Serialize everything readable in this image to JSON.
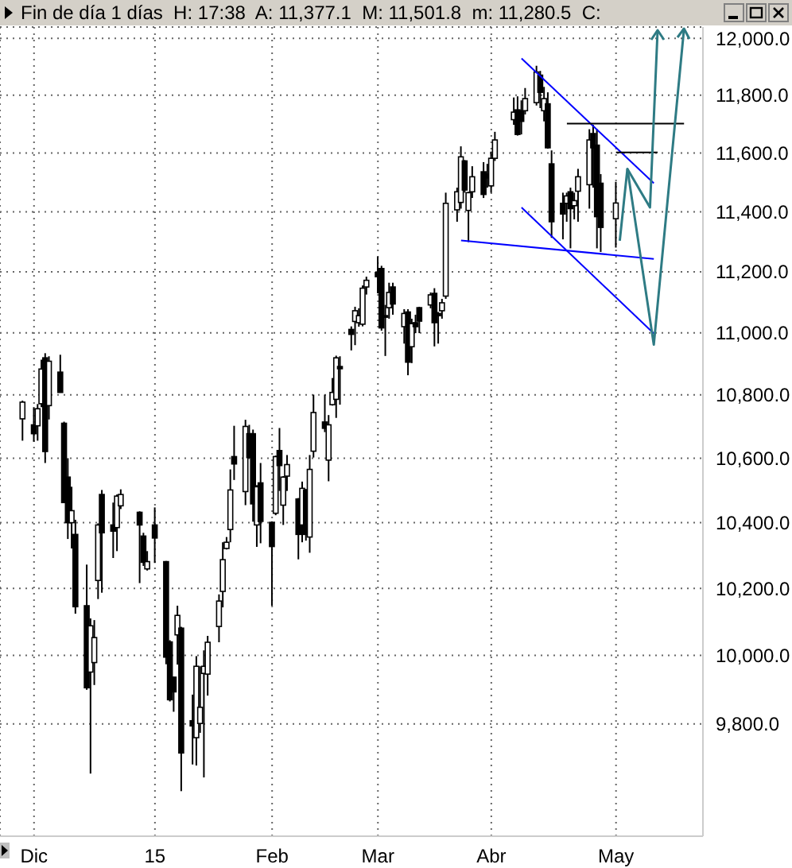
{
  "chart_data": {
    "type": "candlestick",
    "title": "Fin de día 1 días  H: 17:38  A: 11,377.1  M: 11,501.8  m: 11,280.5  C:",
    "log": true,
    "grid": true,
    "x": [
      "2014-11-28",
      "2014-12-01",
      "2014-12-02",
      "2014-12-03",
      "2014-12-04",
      "2014-12-05",
      "2014-12-08",
      "2014-12-09",
      "2014-12-10",
      "2014-12-11",
      "2014-12-12",
      "2014-12-15",
      "2014-12-16",
      "2014-12-17",
      "2014-12-18",
      "2014-12-19",
      "2014-12-22",
      "2014-12-23",
      "2014-12-24",
      "2014-12-29",
      "2014-12-30",
      "2014-12-31",
      "2015-01-02",
      "2015-01-05",
      "2015-01-06",
      "2015-01-07",
      "2015-01-08",
      "2015-01-09",
      "2015-01-12",
      "2015-01-13",
      "2015-01-14",
      "2015-01-15",
      "2015-01-16",
      "2015-01-19",
      "2015-01-20",
      "2015-01-21",
      "2015-01-22",
      "2015-01-23",
      "2015-01-26",
      "2015-01-27",
      "2015-01-28",
      "2015-01-29",
      "2015-01-30",
      "2015-02-02",
      "2015-02-03",
      "2015-02-04",
      "2015-02-05",
      "2015-02-06",
      "2015-02-09",
      "2015-02-10",
      "2015-02-11",
      "2015-02-12",
      "2015-02-13",
      "2015-02-16",
      "2015-02-17",
      "2015-02-18",
      "2015-02-19",
      "2015-02-20",
      "2015-02-23",
      "2015-02-24",
      "2015-02-25",
      "2015-02-26",
      "2015-02-27",
      "2015-03-02",
      "2015-03-03",
      "2015-03-04",
      "2015-03-05",
      "2015-03-06",
      "2015-03-09",
      "2015-03-10",
      "2015-03-11",
      "2015-03-12",
      "2015-03-13",
      "2015-03-16",
      "2015-03-17",
      "2015-03-18",
      "2015-03-19",
      "2015-03-20",
      "2015-03-23",
      "2015-03-24",
      "2015-03-25",
      "2015-03-26",
      "2015-03-27",
      "2015-03-30",
      "2015-03-31",
      "2015-04-01",
      "2015-04-02",
      "2015-04-07",
      "2015-04-08",
      "2015-04-09",
      "2015-04-10",
      "2015-04-13",
      "2015-04-14",
      "2015-04-15",
      "2015-04-16",
      "2015-04-17",
      "2015-04-20",
      "2015-04-21",
      "2015-04-22",
      "2015-04-23",
      "2015-04-24",
      "2015-04-27",
      "2015-04-28",
      "2015-04-29",
      "2015-04-30",
      "2015-05-04"
    ],
    "ohlc": [
      [
        10724,
        10782,
        10655,
        10777
      ],
      [
        10705,
        10761,
        10652,
        10677
      ],
      [
        10702,
        10771,
        10655,
        10756
      ],
      [
        10772,
        10913,
        10761,
        10883
      ],
      [
        10919,
        10934,
        10585,
        10621
      ],
      [
        10766,
        10924,
        10722,
        10908
      ],
      [
        10873,
        10929,
        10808,
        10808
      ],
      [
        10710,
        10715,
        10462,
        10462
      ],
      [
        10541,
        10600,
        10350,
        10400
      ],
      [
        10400,
        10511,
        10321,
        10437
      ],
      [
        10364,
        10409,
        10124,
        10145
      ],
      [
        10148,
        10272,
        9899,
        9905
      ],
      [
        9951,
        10110,
        9657,
        10088
      ],
      [
        9979,
        10105,
        9913,
        10053
      ],
      [
        10224,
        10398,
        10168,
        10393
      ],
      [
        10487,
        10501,
        10187,
        10369
      ],
      [
        10393,
        10462,
        10292,
        10374
      ],
      [
        10385,
        10487,
        10313,
        10482
      ],
      [
        10452,
        10503,
        10442,
        10487
      ],
      [
        10432,
        10435,
        10216,
        10393
      ],
      [
        10359,
        10369,
        10268,
        10279
      ],
      [
        10259,
        10313,
        10254,
        10281
      ],
      [
        10393,
        10447,
        10277,
        10353
      ],
      [
        10281,
        10283,
        9974,
        9995
      ],
      [
        10040,
        10045,
        9865,
        9870
      ],
      [
        9936,
        9938,
        9835,
        9893
      ],
      [
        10061,
        10148,
        9973,
        10119
      ],
      [
        10081,
        10085,
        9607,
        9716
      ],
      [
        9809,
        9885,
        9683,
        9794
      ],
      [
        9760,
        9998,
        9680,
        9968
      ],
      [
        9801,
        9968,
        9774,
        9848
      ],
      [
        9947,
        10015,
        9646,
        9968
      ],
      [
        9945,
        10058,
        9882,
        10039
      ],
      [
        10086,
        10182,
        10039,
        10162
      ],
      [
        10191,
        10340,
        10143,
        10287
      ],
      [
        10321,
        10356,
        10318,
        10340
      ],
      [
        10379,
        10565,
        10340,
        10501
      ],
      [
        10605,
        10702,
        10532,
        10582
      ],
      [
        10496,
        10721,
        10454,
        10700
      ],
      [
        10677,
        10705,
        10600,
        10602
      ],
      [
        10677,
        10690,
        10403,
        10458
      ],
      [
        10393,
        10516,
        10326,
        10511
      ],
      [
        10523,
        10585,
        10337,
        10404
      ],
      [
        10401,
        10404,
        10148,
        10327
      ],
      [
        10429,
        10608,
        10423,
        10605
      ],
      [
        10624,
        10695,
        10498,
        10577
      ],
      [
        10454,
        10544,
        10393,
        10541
      ],
      [
        10544,
        10610,
        10498,
        10580
      ],
      [
        10473,
        10476,
        10288,
        10364
      ],
      [
        10393,
        10527,
        10340,
        10506
      ],
      [
        10501,
        10504,
        10345,
        10364
      ],
      [
        10356,
        10610,
        10308,
        10565
      ],
      [
        10622,
        10801,
        10602,
        10744
      ],
      [
        10714,
        10801,
        10682,
        10694
      ],
      [
        10594,
        10736,
        10528,
        10705
      ],
      [
        10769,
        10854,
        10766,
        10808
      ],
      [
        10786,
        10926,
        10727,
        10919
      ],
      [
        10891,
        10924,
        10769,
        10884
      ],
      [
        11011,
        11021,
        10943,
        10995
      ],
      [
        11037,
        11085,
        10960,
        11072
      ],
      [
        11033,
        11080,
        11020,
        11056
      ],
      [
        11028,
        11155,
        11021,
        11146
      ],
      [
        11150,
        11184,
        11125,
        11172
      ],
      [
        11198,
        11251,
        11129,
        11184
      ],
      [
        11211,
        11220,
        11007,
        11016
      ],
      [
        11056,
        11091,
        10925,
        11051
      ],
      [
        11082,
        11164,
        11046,
        11132
      ],
      [
        11150,
        11164,
        11059,
        11094
      ],
      [
        11020,
        11077,
        10965,
        11063
      ],
      [
        11068,
        11077,
        10863,
        10905
      ],
      [
        10955,
        11046,
        10902,
        11030
      ],
      [
        11033,
        11059,
        10999,
        11020
      ],
      [
        11082,
        11085,
        10999,
        11038
      ],
      [
        11091,
        11132,
        11080,
        11124
      ],
      [
        11129,
        11146,
        10956,
        11033
      ],
      [
        11063,
        11068,
        10965,
        11056
      ],
      [
        11072,
        11111,
        11046,
        11098
      ],
      [
        11120,
        11465,
        11111,
        11429
      ],
      [
        11407,
        11482,
        11367,
        11468
      ],
      [
        11432,
        11623,
        11411,
        11587
      ],
      [
        11573,
        11576,
        11465,
        11474
      ],
      [
        11405,
        11468,
        11299,
        11465
      ],
      [
        11468,
        11555,
        11447,
        11519
      ],
      [
        11536,
        11569,
        11447,
        11459
      ],
      [
        11528,
        11563,
        11482,
        11515
      ],
      [
        11488,
        11605,
        11465,
        11582
      ],
      [
        11582,
        11673,
        11573,
        11645
      ],
      [
        11715,
        11792,
        11697,
        11741
      ],
      [
        11749,
        11796,
        11660,
        11664
      ],
      [
        11746,
        11782,
        11664,
        11709
      ],
      [
        11746,
        11825,
        11733,
        11788
      ],
      [
        11774,
        11903,
        11764,
        11881
      ],
      [
        11870,
        11885,
        11755,
        11810
      ],
      [
        11746,
        11829,
        11709,
        11788
      ],
      [
        11770,
        11810,
        11615,
        11618
      ],
      [
        11563,
        11609,
        11313,
        11367
      ],
      [
        11429,
        11465,
        11308,
        11393
      ],
      [
        11429,
        11465,
        11367,
        11454
      ],
      [
        11468,
        11482,
        11278,
        11411
      ],
      [
        11421,
        11465,
        11375,
        11438
      ],
      [
        11470,
        11546,
        11367,
        11519
      ],
      [
        11492,
        11682,
        11411,
        11645
      ],
      [
        11667,
        11697,
        11482,
        11618
      ],
      [
        11627,
        11682,
        11278,
        11384
      ],
      [
        11497,
        11528,
        11266,
        11348
      ],
      [
        11377.1,
        11501.8,
        11280.5,
        11430
      ]
    ],
    "series": [
      {
        "type": "line",
        "color": "#0000ff",
        "x": [
          "2015-04-09",
          "2015-05-14"
        ],
        "values": [
          11929,
          11497
        ]
      },
      {
        "type": "line",
        "color": "#0000ff",
        "x": [
          "2015-04-09",
          "2015-05-14"
        ],
        "values": [
          11415,
          10998
        ]
      },
      {
        "type": "line",
        "color": "#0000ff",
        "x": [
          "2015-03-24",
          "2015-05-14"
        ],
        "values": [
          11304,
          11243
        ]
      },
      {
        "type": "line",
        "color": "#000000",
        "x": [
          "2015-04-21",
          "2015-05-22"
        ],
        "values": [
          11701,
          11701
        ]
      },
      {
        "type": "line",
        "color": "#000000",
        "x": [
          "2015-05-04",
          "2015-05-15"
        ],
        "values": [
          11602,
          11602
        ]
      }
    ],
    "xlim": [
      "2014-11-22",
      "2015-05-27"
    ],
    "xticks": [
      {
        "value": "2014-12-01",
        "label": "Dic"
      },
      {
        "value": "2015-01-02",
        "label": "15"
      },
      {
        "value": "2015-02-02",
        "label": "Feb"
      },
      {
        "value": "2015-03-02",
        "label": "Mar"
      },
      {
        "value": "2015-04-01",
        "label": "Abr"
      },
      {
        "value": "2015-05-04",
        "label": "May"
      }
    ],
    "ylim": [
      9480,
      12040
    ],
    "yticks": [
      {
        "value": 9800,
        "label": "9,800.0"
      },
      {
        "value": 10000,
        "label": "10,000.0"
      },
      {
        "value": 10200,
        "label": "10,200.0"
      },
      {
        "value": 10400,
        "label": "10,400.0"
      },
      {
        "value": 10600,
        "label": "10,600.0"
      },
      {
        "value": 10800,
        "label": "10,800.0"
      },
      {
        "value": 11000,
        "label": "11,000.0"
      },
      {
        "value": 11200,
        "label": "11,200.0"
      },
      {
        "value": 11400,
        "label": "11,400.0"
      },
      {
        "value": 11600,
        "label": "11,600.0"
      },
      {
        "value": 11800,
        "label": "11,800.0"
      },
      {
        "value": 12000,
        "label": "12,000.0"
      }
    ]
  }
}
